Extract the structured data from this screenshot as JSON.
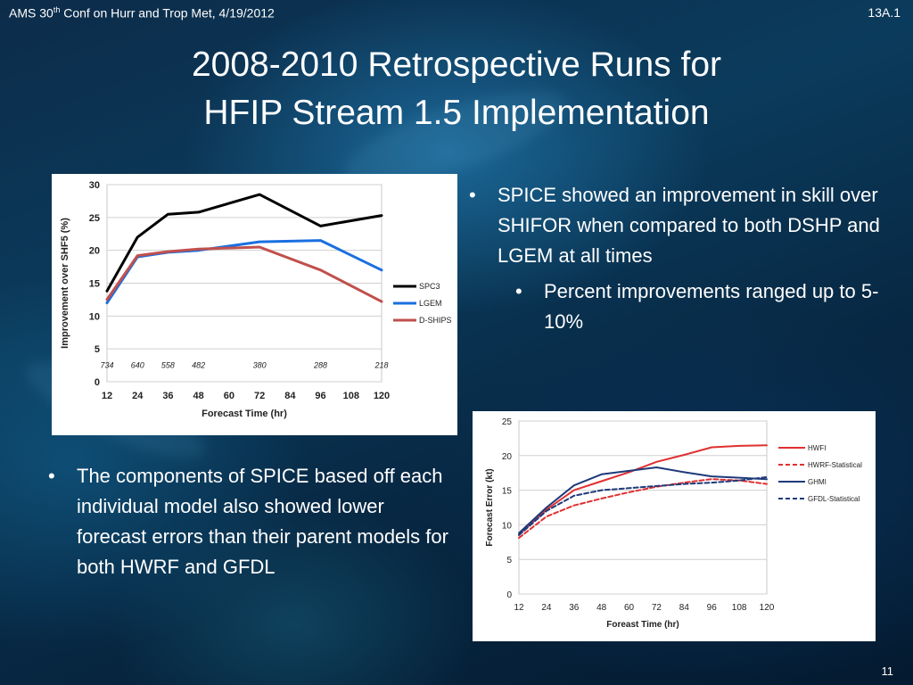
{
  "header": {
    "left_prefix": "AMS 30",
    "left_sup": "th",
    "left_suffix": " Conf on Hurr and Trop Met, 4/19/2012",
    "right": "13A.1"
  },
  "title": {
    "line1": "2008-2010 Retrospective Runs for",
    "line2": "HFIP Stream 1.5 Implementation"
  },
  "bullets_right": {
    "main": "SPICE showed an improvement in skill over SHIFOR when compared to both DSHP and LGEM at all times",
    "sub": "Percent improvements ranged up to 5-10%"
  },
  "bullets_left": {
    "main": "The components of SPICE based off each individual model also showed lower forecast errors than their parent models for both HWRF and GFDL"
  },
  "page_number": "11",
  "chart_data": [
    {
      "type": "line",
      "title": "",
      "xlabel": "Forecast Time (hr)",
      "ylabel": "Improvement over SHF5 (%)",
      "x": [
        12,
        24,
        36,
        48,
        60,
        72,
        84,
        96,
        108,
        120
      ],
      "xlim": [
        12,
        120
      ],
      "ylim": [
        0,
        30
      ],
      "yticks": [
        0,
        5,
        10,
        15,
        20,
        25,
        30
      ],
      "grid": true,
      "legend_position": "right",
      "sample_sizes": [
        {
          "x": 12,
          "label": "734"
        },
        {
          "x": 24,
          "label": "640"
        },
        {
          "x": 36,
          "label": "558"
        },
        {
          "x": 48,
          "label": "482"
        },
        {
          "x": 72,
          "label": "380"
        },
        {
          "x": 96,
          "label": "288"
        },
        {
          "x": 120,
          "label": "218"
        }
      ],
      "series": [
        {
          "name": "SPC3",
          "color": "#000000",
          "dash": "",
          "points": [
            [
              12,
              13.8
            ],
            [
              24,
              22.0
            ],
            [
              36,
              25.5
            ],
            [
              48,
              25.8
            ],
            [
              72,
              28.5
            ],
            [
              96,
              23.7
            ],
            [
              120,
              25.3
            ]
          ]
        },
        {
          "name": "LGEM",
          "color": "#1a6fe0",
          "dash": "",
          "points": [
            [
              12,
              12.0
            ],
            [
              24,
              19.0
            ],
            [
              36,
              19.7
            ],
            [
              48,
              20.0
            ],
            [
              72,
              21.3
            ],
            [
              96,
              21.5
            ],
            [
              120,
              17.0
            ]
          ]
        },
        {
          "name": "D-SHIPS",
          "color": "#c0504d",
          "dash": "",
          "points": [
            [
              12,
              12.5
            ],
            [
              24,
              19.2
            ],
            [
              36,
              19.8
            ],
            [
              48,
              20.2
            ],
            [
              72,
              20.5
            ],
            [
              96,
              17.0
            ],
            [
              120,
              12.2
            ]
          ]
        }
      ]
    },
    {
      "type": "line",
      "title": "",
      "xlabel": "Foreast Time (hr)",
      "ylabel": "Forecast Error (kt)",
      "x": [
        12,
        24,
        36,
        48,
        60,
        72,
        84,
        96,
        108,
        120
      ],
      "xlim": [
        12,
        120
      ],
      "ylim": [
        0,
        25
      ],
      "yticks": [
        0,
        5,
        10,
        15,
        20,
        25
      ],
      "grid": true,
      "legend_position": "right",
      "series": [
        {
          "name": "HWFI",
          "color": "#e03030",
          "dash": "",
          "points": [
            [
              12,
              8.6
            ],
            [
              24,
              12.2
            ],
            [
              36,
              15.0
            ],
            [
              48,
              16.3
            ],
            [
              60,
              17.6
            ],
            [
              72,
              19.1
            ],
            [
              84,
              20.1
            ],
            [
              96,
              21.2
            ],
            [
              108,
              21.4
            ],
            [
              120,
              21.5
            ]
          ]
        },
        {
          "name": "HWRF-Statistical",
          "color": "#e03030",
          "dash": "5,3",
          "points": [
            [
              12,
              8.1
            ],
            [
              24,
              11.2
            ],
            [
              36,
              12.8
            ],
            [
              48,
              13.8
            ],
            [
              60,
              14.7
            ],
            [
              72,
              15.5
            ],
            [
              84,
              16.1
            ],
            [
              96,
              16.6
            ],
            [
              108,
              16.4
            ],
            [
              120,
              15.9
            ]
          ]
        },
        {
          "name": "GHMI",
          "color": "#1f3a7a",
          "dash": "",
          "points": [
            [
              12,
              8.8
            ],
            [
              24,
              12.5
            ],
            [
              36,
              15.7
            ],
            [
              48,
              17.3
            ],
            [
              60,
              17.8
            ],
            [
              72,
              18.3
            ],
            [
              84,
              17.6
            ],
            [
              96,
              17.0
            ],
            [
              108,
              16.8
            ],
            [
              120,
              16.6
            ]
          ]
        },
        {
          "name": "GFDL-Statistical",
          "color": "#1f3a7a",
          "dash": "5,3",
          "points": [
            [
              12,
              8.5
            ],
            [
              24,
              12.0
            ],
            [
              36,
              14.2
            ],
            [
              48,
              15.0
            ],
            [
              60,
              15.3
            ],
            [
              72,
              15.6
            ],
            [
              84,
              15.9
            ],
            [
              96,
              16.1
            ],
            [
              108,
              16.4
            ],
            [
              120,
              16.9
            ]
          ]
        }
      ]
    }
  ]
}
